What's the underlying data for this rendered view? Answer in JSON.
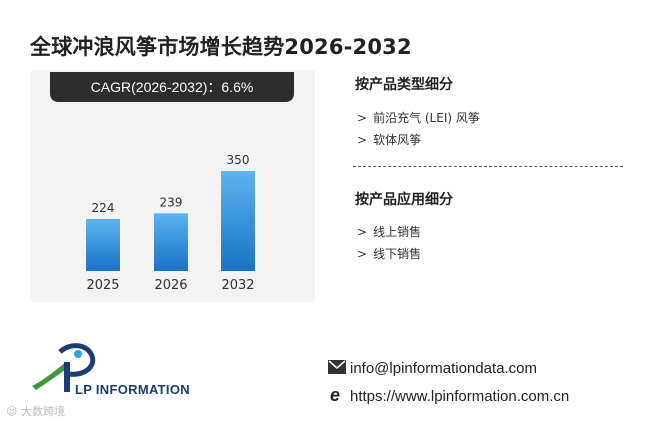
{
  "title": "全球冲浪风筝市场增长趋势2026-2032",
  "cagr_label": "CAGR(2026-2032)：6.6%",
  "segments": [
    {
      "heading": "按产品类型细分",
      "items": [
        "前沿充气 (LEI) 风筝",
        "软体风筝"
      ]
    },
    {
      "heading": "按产品应用细分",
      "items": [
        "线上销售",
        "线下销售"
      ]
    }
  ],
  "brand": "LP INFORMATION",
  "contact": {
    "email": "info@lpinformationdata.com",
    "website": "https://www.lpinformation.com.cn"
  },
  "watermark": "大数跨境",
  "colors": {
    "bar_top": "#5cb4f0",
    "bar_bottom": "#1a72c4",
    "pill": "#2d2d2d",
    "brand": "#1a3e73"
  },
  "chart_data": {
    "type": "bar",
    "categories": [
      "2025",
      "2026",
      "2032"
    ],
    "values": [
      224,
      239,
      350
    ],
    "title": "",
    "xlabel": "",
    "ylabel": "",
    "ylim": [
      0,
      400
    ]
  }
}
